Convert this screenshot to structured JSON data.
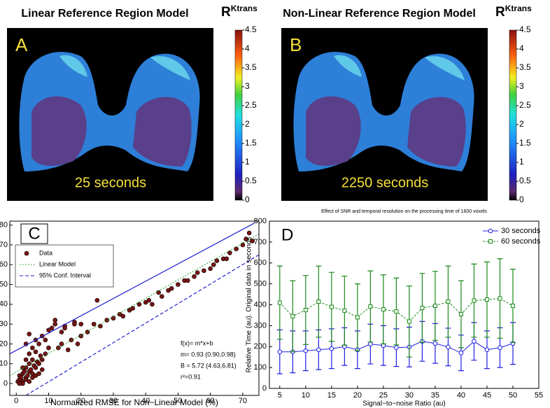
{
  "chart_data": [
    {
      "type": "image",
      "title": "Linear Reference Region Model",
      "panel_label": "A",
      "caption": "25 seconds",
      "colorbar_label": "R",
      "colorbar_label_sup": "Ktrans",
      "colorbar_lim": [
        0,
        4.5
      ],
      "colorbar_ticks": [
        0,
        0.5,
        1,
        1.5,
        2,
        2.5,
        3,
        3.5,
        4,
        4.5
      ]
    },
    {
      "type": "image",
      "title": "Non-Linear Reference Region Model",
      "panel_label": "B",
      "caption": "2250 seconds",
      "colorbar_label": "R",
      "colorbar_label_sup": "Ktrans",
      "colorbar_lim": [
        0,
        4.5
      ],
      "colorbar_ticks": [
        0,
        0.5,
        1,
        1.5,
        2,
        2.5,
        3,
        3.5,
        4,
        4.5
      ]
    },
    {
      "type": "scatter",
      "panel_label": "C",
      "xlabel": "Normalized RMSE for Non−Linear Model (%)",
      "xlim": [
        -2,
        75
      ],
      "ylim": [
        -6,
        82
      ],
      "xticks": [
        0,
        10,
        20,
        30,
        40,
        50,
        60,
        70
      ],
      "yticks": [
        0,
        10,
        20,
        30,
        40,
        50,
        60,
        70,
        80
      ],
      "legend": "upper left",
      "series": [
        {
          "name": "Data",
          "color": "#7a1414",
          "style": "markers",
          "x": [
            0.5,
            1,
            1,
            1.5,
            2,
            2,
            2.5,
            3,
            3,
            3.5,
            4,
            4,
            4.5,
            5,
            5,
            5.5,
            6,
            6,
            6.5,
            7,
            7,
            7.5,
            8,
            8,
            9,
            9,
            10,
            10,
            11,
            12,
            2,
            3,
            4,
            5,
            6,
            7,
            8,
            1,
            2,
            3,
            4,
            5,
            6,
            3,
            4,
            13,
            14,
            15,
            16,
            17,
            18,
            19,
            20,
            22,
            24,
            25,
            26,
            28,
            30,
            32,
            33,
            35,
            36,
            38,
            40,
            41,
            42,
            44,
            45,
            47,
            48,
            50,
            52,
            53,
            55,
            56,
            58,
            60,
            61,
            62,
            64,
            65,
            66,
            68,
            70,
            71,
            72,
            73,
            15,
            18,
            20,
            14,
            12
          ],
          "values": [
            1,
            2,
            4,
            3,
            5,
            1,
            6,
            8,
            3,
            4,
            10,
            6,
            7,
            12,
            5,
            9,
            16,
            8,
            11,
            20,
            10,
            14,
            24,
            12,
            22,
            15,
            27,
            18,
            28,
            30,
            0,
            2,
            1,
            3,
            4,
            5,
            7,
            0,
            8,
            12,
            15,
            18,
            22,
            20,
            25,
            18,
            20,
            29,
            17,
            22,
            31,
            20,
            24,
            26,
            30,
            42,
            29,
            32,
            33,
            35,
            34,
            37,
            38,
            40,
            41,
            42,
            40,
            46,
            44,
            47,
            48,
            50,
            52,
            52,
            54,
            56,
            57,
            58,
            60,
            62,
            63,
            63,
            66,
            68,
            70,
            73,
            76,
            72,
            28,
            30,
            30,
            26,
            32
          ]
        },
        {
          "name": "Linear Model",
          "color": "#119911",
          "style": "dotted",
          "x": [
            -2,
            75
          ],
          "values": [
            4,
            75.5
          ]
        },
        {
          "name": "95% Conf. Interval",
          "color": "#1f1fd0",
          "style": "dashed",
          "x": [
            3,
            75
          ],
          "values": [
            -6,
            65
          ]
        },
        {
          "color": "#1f1fd0",
          "style": "solid",
          "x": [
            -2,
            73.6
          ],
          "values": [
            15,
            81
          ]
        }
      ],
      "annotations": [
        "f(x)= m*x+b",
        "m= 0.93 (0.90,0.98)",
        "B = 5.72 (4.63,6.81)",
        "r²=0.91"
      ]
    },
    {
      "type": "errorbar-line",
      "panel_label": "D",
      "title": "Effect of SNR and temporal resolution on the processing time of 1600 voxels",
      "xlabel": "Signal−to−noise Ratio (au)",
      "ylabel": "Relative Time (au). Original data in seconds",
      "xlim": [
        3,
        55
      ],
      "ylim": [
        0,
        800
      ],
      "xticks": [
        5,
        10,
        15,
        20,
        25,
        30,
        35,
        40,
        45,
        50,
        55
      ],
      "yticks": [
        0,
        100,
        200,
        300,
        400,
        500,
        600,
        700,
        800
      ],
      "legend": "upper right",
      "x": [
        5,
        7.5,
        10,
        12.5,
        15,
        17.5,
        20,
        22.5,
        25,
        27.5,
        30,
        32.5,
        35,
        37.5,
        40,
        42.5,
        45,
        47.5,
        50
      ],
      "series": [
        {
          "name": "30 seconds",
          "color": "#1f1fe0",
          "marker": "circle",
          "values": [
            175,
            175,
            180,
            185,
            190,
            200,
            185,
            212,
            205,
            195,
            198,
            225,
            215,
            198,
            170,
            225,
            185,
            195,
            215
          ],
          "errors": [
            105,
            100,
            95,
            95,
            95,
            90,
            90,
            95,
            95,
            90,
            95,
            95,
            95,
            90,
            85,
            90,
            90,
            95,
            100
          ]
        },
        {
          "name": "60 seconds",
          "color": "#1a8a1a",
          "marker": "square",
          "values": [
            410,
            345,
            375,
            415,
            390,
            372,
            340,
            392,
            378,
            368,
            320,
            385,
            395,
            415,
            355,
            420,
            425,
            430,
            395
          ],
          "errors": [
            175,
            170,
            165,
            170,
            165,
            165,
            160,
            170,
            165,
            160,
            170,
            165,
            165,
            170,
            160,
            175,
            180,
            190,
            175
          ]
        }
      ]
    }
  ]
}
